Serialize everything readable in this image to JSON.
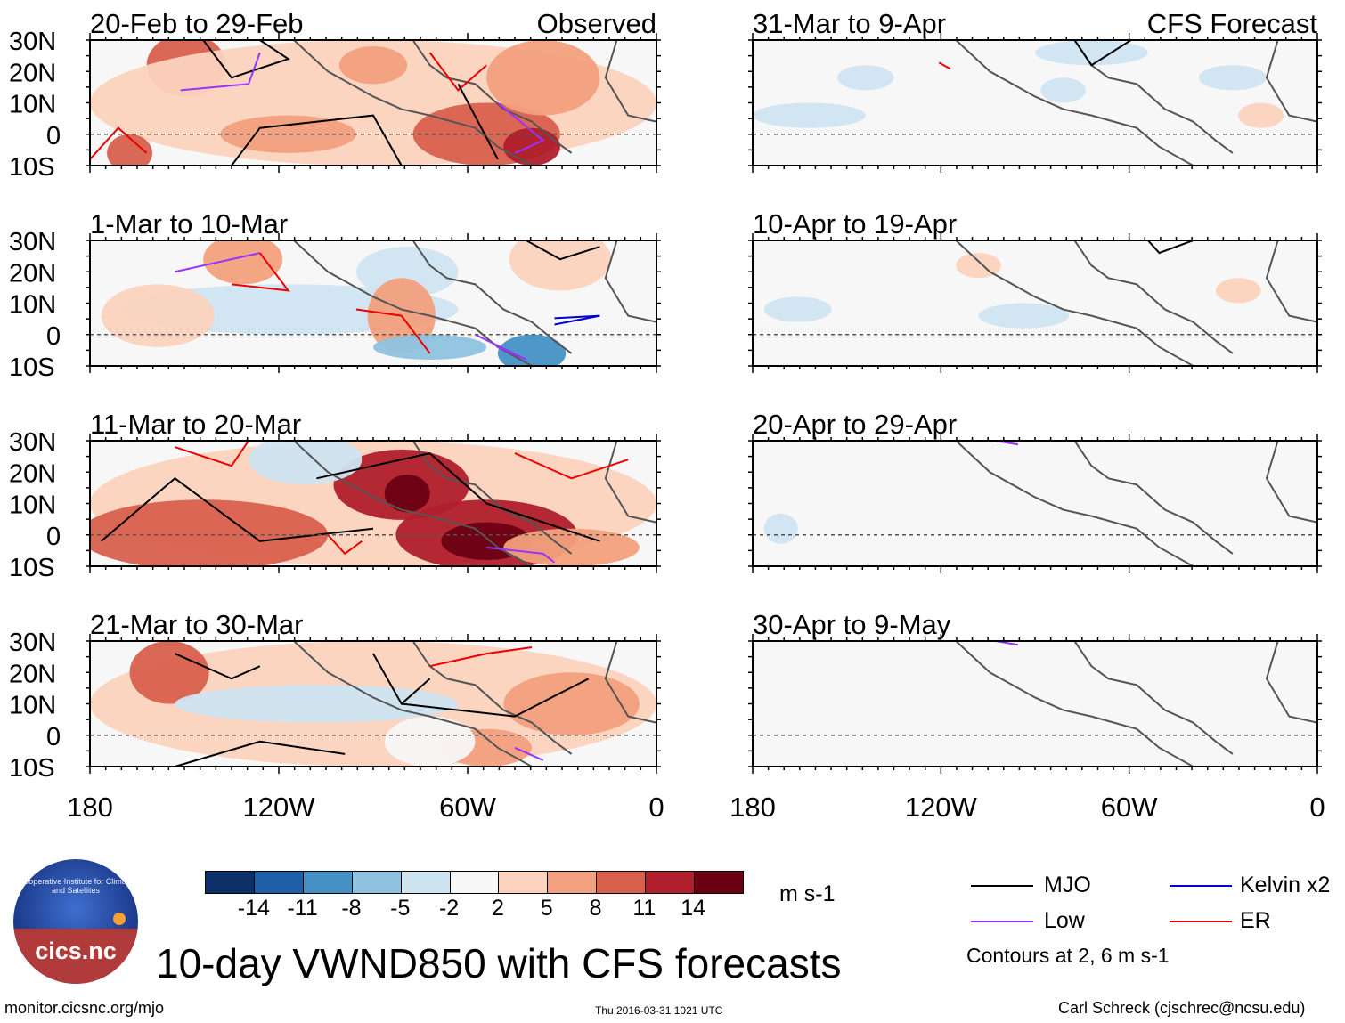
{
  "observed_label": "Observed",
  "forecast_label": "CFS Forecast",
  "panels": {
    "observed": [
      {
        "period": "20-Feb to 29-Feb"
      },
      {
        "period": "1-Mar to 10-Mar"
      },
      {
        "period": "11-Mar to 20-Mar"
      },
      {
        "period": "21-Mar to 30-Mar"
      }
    ],
    "forecast": [
      {
        "period": "31-Mar to 9-Apr"
      },
      {
        "period": "10-Apr to 19-Apr"
      },
      {
        "period": "20-Apr to 29-Apr"
      },
      {
        "period": "30-Apr to 9-May"
      }
    ]
  },
  "lat_labels": [
    "30N",
    "20N",
    "10N",
    "0",
    "10S"
  ],
  "lon_labels": [
    "180",
    "120W",
    "60W",
    "0"
  ],
  "colorbar": {
    "colors": [
      "#0b2f66",
      "#1f5fa8",
      "#4591c6",
      "#8ec2df",
      "#cfe4f1",
      "#f7f7f7",
      "#fbd3bd",
      "#f2a07d",
      "#d8604d",
      "#b01f2b",
      "#6b0013"
    ],
    "tick_labels": [
      "-14",
      "-11",
      "-8",
      "-5",
      "-2",
      "2",
      "5",
      "8",
      "11",
      "14"
    ],
    "units": "m s-1"
  },
  "legend": {
    "items": [
      {
        "label": "MJO",
        "color": "#000000"
      },
      {
        "label": "Kelvin x2",
        "color": "#0000cc"
      },
      {
        "label": "Low",
        "color": "#9933ff"
      },
      {
        "label": "ER",
        "color": "#ee0000"
      }
    ],
    "note": "Contours at 2, 6 m s-1"
  },
  "logo_text": "cics.nc",
  "logo_ring_text": "Cooperative Institute for Climate and Satellites",
  "title": "10-day VWND850 with CFS forecasts",
  "footer": {
    "url": "monitor.cicsnc.org/mjo",
    "timestamp": "Thu 2016-03-31 1021 UTC",
    "author": "Carl Schreck (cjschrec@ncsu.edu)"
  }
}
